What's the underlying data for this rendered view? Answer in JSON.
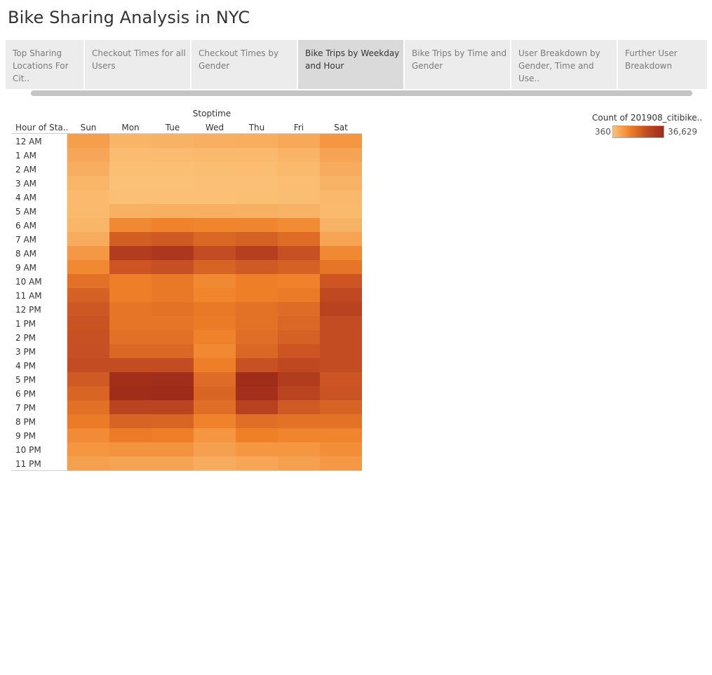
{
  "title": "Bike Sharing Analysis in NYC",
  "tabs": [
    {
      "label": "Top Sharing\nLocations For Cit..",
      "active": false
    },
    {
      "label": "Checkout Times for all\nUsers",
      "active": false
    },
    {
      "label": "Checkout Times by\nGender",
      "active": false
    },
    {
      "label": "Bike Trips by Weekday\nand Hour",
      "active": true
    },
    {
      "label": "Bike Trips by Time and\nGender",
      "active": false
    },
    {
      "label": "User Breakdown by\nGender, Time and Use..",
      "active": false
    },
    {
      "label": "Further User\nBreakdown",
      "active": false
    }
  ],
  "legend": {
    "title": "Count of 201908_citibike..",
    "min_label": "360",
    "max_label": "36,629",
    "colors": [
      "#fbc278",
      "#f08028",
      "#c24a22",
      "#9e2b1a"
    ]
  },
  "chart_data": {
    "type": "heatmap",
    "column_header": "Stoptime",
    "row_header": "Hour of Sta..",
    "columns": [
      "Sun",
      "Mon",
      "Tue",
      "Wed",
      "Thu",
      "Fri",
      "Sat"
    ],
    "rows": [
      "12 AM",
      "1 AM",
      "2 AM",
      "3 AM",
      "4 AM",
      "5 AM",
      "6 AM",
      "7 AM",
      "8 AM",
      "9 AM",
      "10 AM",
      "11 AM",
      "12 PM",
      "1 PM",
      "2 PM",
      "3 PM",
      "4 PM",
      "5 PM",
      "6 PM",
      "7 PM",
      "8 PM",
      "9 PM",
      "10 PM",
      "11 PM"
    ],
    "value_range": [
      360,
      36629
    ],
    "values": [
      [
        7000,
        3000,
        3200,
        3800,
        4200,
        5000,
        8500
      ],
      [
        5500,
        1500,
        1600,
        1800,
        2000,
        3000,
        6000
      ],
      [
        4000,
        900,
        900,
        1100,
        1200,
        1800,
        4500
      ],
      [
        2800,
        600,
        600,
        700,
        800,
        1200,
        3200
      ],
      [
        2000,
        700,
        700,
        800,
        900,
        1100,
        2200
      ],
      [
        1800,
        3500,
        3800,
        3800,
        3700,
        3200,
        1900
      ],
      [
        2600,
        11000,
        12000,
        11500,
        11500,
        10500,
        3300
      ],
      [
        4500,
        20000,
        21000,
        18000,
        19500,
        17000,
        6000
      ],
      [
        8000,
        30000,
        32000,
        24000,
        29000,
        23000,
        11000
      ],
      [
        11000,
        22000,
        23500,
        19000,
        21000,
        19500,
        15000
      ],
      [
        16000,
        13000,
        14000,
        11000,
        13000,
        12000,
        22000
      ],
      [
        19500,
        13000,
        14000,
        11500,
        13000,
        13500,
        25000
      ],
      [
        21500,
        15000,
        15500,
        14000,
        15500,
        17000,
        27500
      ],
      [
        22500,
        15000,
        15000,
        13500,
        15500,
        18000,
        24000
      ],
      [
        23000,
        16000,
        16000,
        12000,
        16500,
        19500,
        24000
      ],
      [
        23500,
        18000,
        18000,
        11000,
        18000,
        22000,
        24000
      ],
      [
        24000,
        24000,
        24000,
        13000,
        23000,
        25500,
        24000
      ],
      [
        21000,
        35000,
        35500,
        17000,
        36000,
        30000,
        22000
      ],
      [
        18500,
        36000,
        36600,
        18500,
        34500,
        27000,
        22500
      ],
      [
        16000,
        27000,
        26500,
        16500,
        28000,
        21000,
        19000
      ],
      [
        13500,
        19000,
        18500,
        12000,
        16500,
        15500,
        15500
      ],
      [
        10500,
        13500,
        13000,
        8500,
        12500,
        11500,
        11500
      ],
      [
        8500,
        9000,
        9000,
        6500,
        8500,
        8500,
        10000
      ],
      [
        6500,
        6000,
        6000,
        4500,
        5500,
        6500,
        8000
      ]
    ]
  }
}
